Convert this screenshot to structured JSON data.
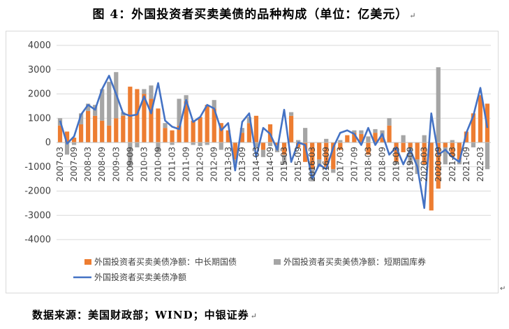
{
  "figure": {
    "title": "图 4：外国投资者买卖美债的品种构成（单位：亿美元）",
    "source": "数据来源：美国财政部；WIND；中银证券",
    "mark": "↵"
  },
  "chart_data": {
    "type": "bar",
    "ylim": [
      -4000,
      4000
    ],
    "yticks": [
      "4000",
      "3000",
      "2000",
      "1000",
      "0",
      "-1000",
      "-2000",
      "-3000",
      "-4000"
    ],
    "ytick_values": [
      4000,
      3000,
      2000,
      1000,
      0,
      -1000,
      -2000,
      -3000,
      -4000
    ],
    "grid": true,
    "legend_position": "bottom",
    "xtick_labels": [
      "2007-03",
      "2007-09",
      "2008-03",
      "2008-09",
      "2009-03",
      "2009-09",
      "2010-03",
      "2010-09",
      "2011-03",
      "2011-09",
      "2012-03",
      "2012-09",
      "2013-03",
      "2013-09",
      "2014-03",
      "2014-09",
      "2015-03",
      "2015-09",
      "2016-03",
      "2016-09",
      "2017-03",
      "2017-09",
      "2018-03",
      "2018-09",
      "2019-03",
      "2019-09",
      "2020-03",
      "2020-09",
      "2021-03",
      "2021-09",
      "2022-03"
    ],
    "categories": [
      "2007-03",
      "2007-06",
      "2007-09",
      "2007-12",
      "2008-03",
      "2008-06",
      "2008-09",
      "2008-12",
      "2009-03",
      "2009-06",
      "2009-09",
      "2009-12",
      "2010-03",
      "2010-06",
      "2010-09",
      "2010-12",
      "2011-03",
      "2011-06",
      "2011-09",
      "2011-12",
      "2012-03",
      "2012-06",
      "2012-09",
      "2012-12",
      "2013-03",
      "2013-06",
      "2013-09",
      "2013-12",
      "2014-03",
      "2014-06",
      "2014-09",
      "2014-12",
      "2015-03",
      "2015-06",
      "2015-09",
      "2015-12",
      "2016-03",
      "2016-06",
      "2016-09",
      "2016-12",
      "2017-03",
      "2017-06",
      "2017-09",
      "2017-12",
      "2018-03",
      "2018-06",
      "2018-09",
      "2018-12",
      "2019-03",
      "2019-06",
      "2019-09",
      "2019-12",
      "2020-03",
      "2020-06",
      "2020-09",
      "2020-12",
      "2021-03",
      "2021-06",
      "2021-09",
      "2021-12",
      "2022-03",
      "2022-06"
    ],
    "series": [
      {
        "name": "外国投资者买卖美债净额：中长期国债",
        "type": "bar",
        "color": "#ed7d31",
        "values": [
          700,
          450,
          200,
          750,
          1300,
          1100,
          900,
          700,
          1000,
          1100,
          2300,
          2200,
          2000,
          1800,
          1400,
          600,
          500,
          700,
          1700,
          900,
          1050,
          1550,
          1400,
          800,
          500,
          -700,
          400,
          800,
          1100,
          -300,
          750,
          -100,
          -500,
          1100,
          -200,
          -800,
          -1100,
          -700,
          -1000,
          -1100,
          -300,
          300,
          400,
          350,
          -500,
          400,
          200,
          700,
          -800,
          -400,
          -200,
          -700,
          -900,
          -2800,
          -1900,
          -200,
          -600,
          -700,
          450,
          1200,
          1950,
          1600
        ]
      },
      {
        "name": "外国投资者买卖美债净额：短期国库券",
        "type": "bar",
        "color": "#a5a5a5",
        "values": [
          300,
          -500,
          -100,
          450,
          300,
          450,
          1300,
          1800,
          1900,
          150,
          -1000,
          -200,
          200,
          550,
          -400,
          200,
          -100,
          1100,
          250,
          -100,
          -150,
          -100,
          350,
          -300,
          0,
          -150,
          200,
          250,
          -200,
          -300,
          -150,
          -300,
          -400,
          150,
          100,
          600,
          -500,
          -300,
          150,
          -150,
          100,
          0,
          100,
          150,
          250,
          150,
          300,
          300,
          -100,
          300,
          -700,
          -600,
          300,
          0,
          3100,
          -700,
          100,
          -200,
          0,
          -200,
          0,
          -1100
        ]
      },
      {
        "name": "外国投资者买卖美债净额",
        "type": "line",
        "color": "#4472c4",
        "values": [
          900,
          -50,
          250,
          1150,
          1550,
          1350,
          2200,
          2750,
          2000,
          1200,
          1100,
          1150,
          1900,
          1200,
          2450,
          900,
          650,
          550,
          1750,
          850,
          1050,
          1550,
          1400,
          500,
          800,
          -1150,
          850,
          1200,
          -600,
          600,
          350,
          -300,
          1350,
          -800,
          0,
          -100,
          -1500,
          -900,
          -1100,
          -200,
          400,
          500,
          350,
          -100,
          600,
          -100,
          350,
          -500,
          -200,
          -900,
          -300,
          -1000,
          -2700,
          1200,
          -500,
          -300,
          -600,
          -800,
          400,
          1100,
          2250,
          600
        ]
      }
    ]
  }
}
